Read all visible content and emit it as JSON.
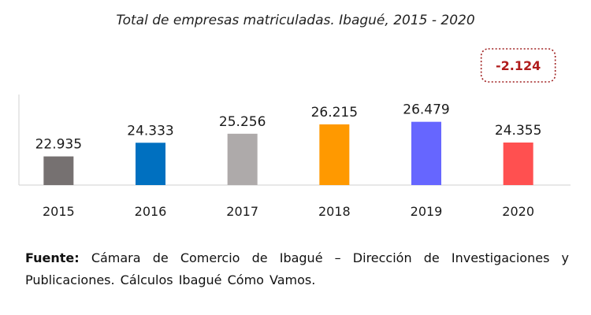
{
  "chart_data": {
    "type": "bar",
    "title": "Total de empresas matriculadas. Ibagué, 2015 - 2020",
    "categories": [
      "2015",
      "2016",
      "2017",
      "2018",
      "2019",
      "2020"
    ],
    "values": [
      22935,
      24333,
      25256,
      26215,
      26479,
      24355
    ],
    "value_labels": [
      "22.935",
      "24.333",
      "25.256",
      "26.215",
      "26.479",
      "24.355"
    ],
    "colors": [
      "#767171",
      "#0070C0",
      "#AEAAAA",
      "#FF9900",
      "#6666FF",
      "#FF5050"
    ],
    "ylim": [
      20000,
      27500
    ],
    "grid": false,
    "annotation": {
      "text": "-2.124",
      "category": "2020"
    }
  },
  "source": {
    "label": "Fuente:",
    "text": "Cámara de Comercio de Ibagué – Dirección de Investigaciones y Publicaciones. Cálculos Ibagué Cómo Vamos."
  }
}
